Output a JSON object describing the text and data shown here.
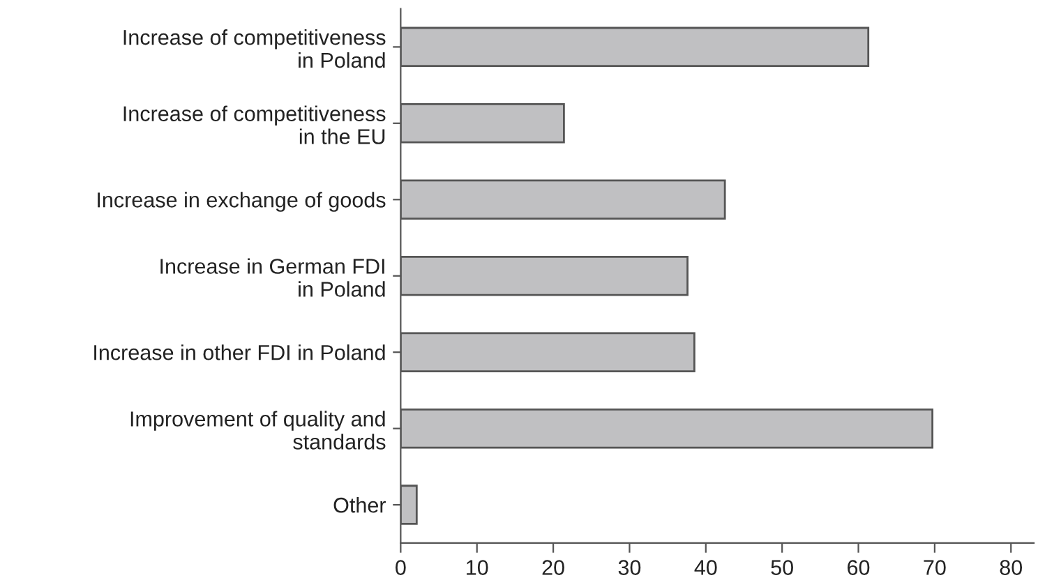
{
  "chart_data": {
    "type": "bar",
    "orientation": "horizontal",
    "categories": [
      "Increase of competitiveness\nin Poland",
      "Increase of competitiveness\nin the EU",
      "Increase in exchange of goods",
      "Increase in German FDI\nin Poland",
      "Increase in other FDI in Poland",
      "Improvement of quality and\nstandards",
      "Other"
    ],
    "values": [
      61.3,
      21.4,
      42.5,
      37.6,
      38.5,
      69.7,
      2.1
    ],
    "color": "#c0c0c2",
    "xlim": [
      0,
      83
    ],
    "xticks": [
      0,
      10,
      20,
      30,
      40,
      50,
      60,
      70,
      80
    ],
    "grid": false
  }
}
